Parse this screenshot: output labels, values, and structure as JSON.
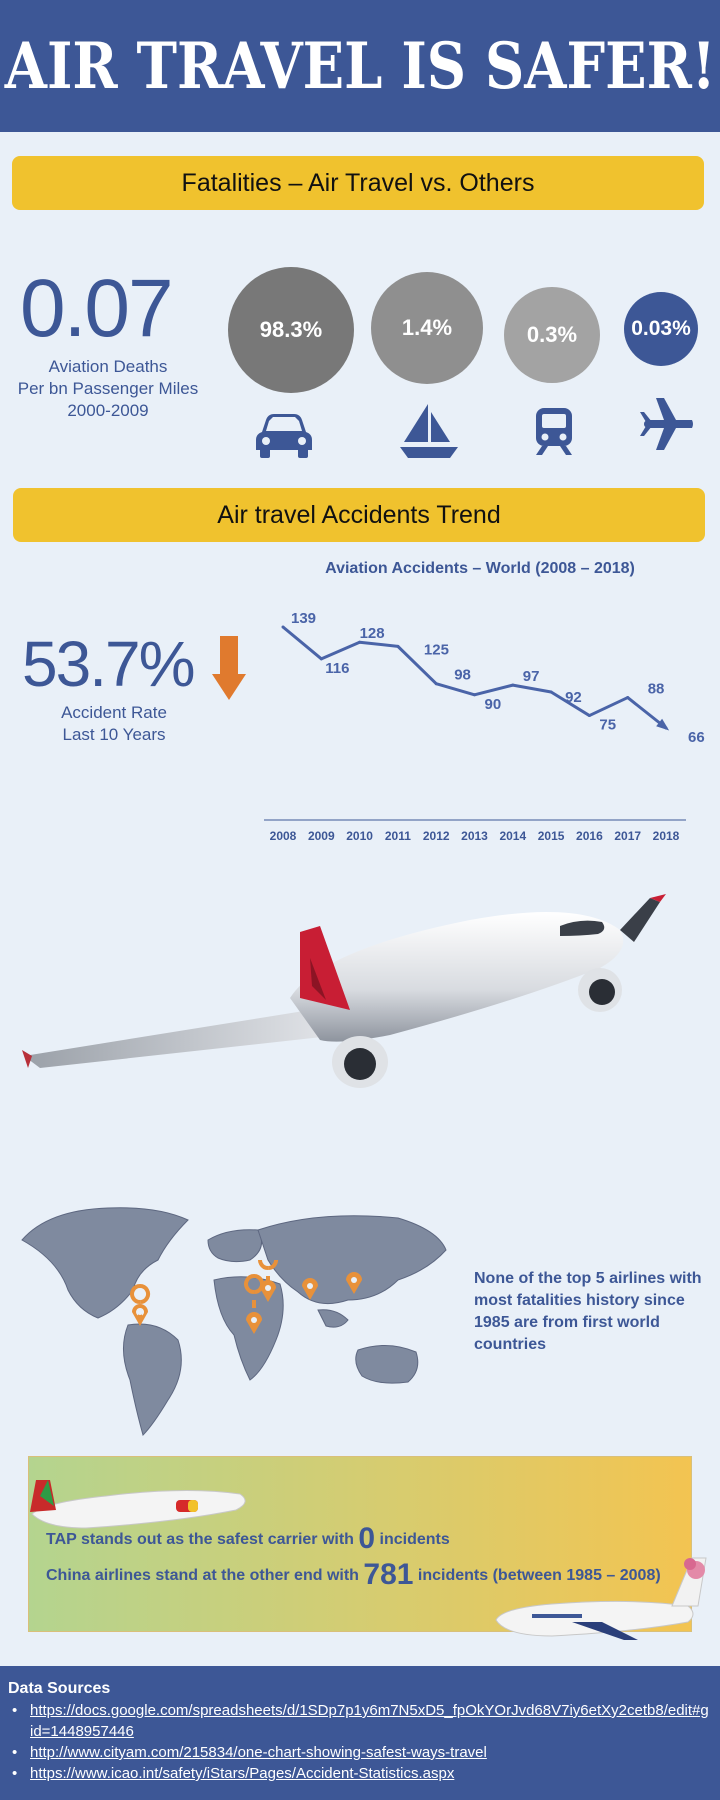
{
  "header": {
    "title": "AIR TRAVEL IS SAFER!"
  },
  "fatalities": {
    "band_title": "Fatalities – Air Travel vs. Others",
    "headline_value": "0.07",
    "headline_label_lines": [
      "Aviation Deaths",
      "Per bn Passenger Miles",
      "2000-2009"
    ],
    "modes": [
      {
        "label": "98.3%",
        "icon": "car-icon",
        "color": "#787878"
      },
      {
        "label": "1.4%",
        "icon": "sailboat-icon",
        "color": "#8f8f8f"
      },
      {
        "label": "0.3%",
        "icon": "train-icon",
        "color": "#a3a3a3"
      },
      {
        "label": "0.03%",
        "icon": "airplane-icon",
        "color": "#3d5796"
      }
    ]
  },
  "trend": {
    "band_title": "Air travel Accidents Trend",
    "headline_value": "53.7%",
    "headline_icon": "down-arrow-icon",
    "headline_label_lines": [
      "Accident Rate",
      "Last 10 Years"
    ]
  },
  "chart_data": {
    "type": "line",
    "title": "Aviation Accidents – World (2008 – 2018)",
    "categories": [
      "2008",
      "2009",
      "2010",
      "2011",
      "2012",
      "2013",
      "2014",
      "2015",
      "2016",
      "2017",
      "2018"
    ],
    "values": [
      139,
      116,
      128,
      125,
      98,
      90,
      97,
      92,
      75,
      88,
      66
    ],
    "data_labels": true,
    "color": "#4a64a8",
    "grid": false
  },
  "world": {
    "text": "None of the top 5 airlines with most fatalities history since 1985 are from first world countries",
    "marker_icon": "location-pin-icon",
    "marker_color": "#e8913a"
  },
  "airlines": {
    "tap_prefix": "TAP stands out as the safest carrier with",
    "tap_count": "0",
    "tap_suffix": "incidents",
    "china_prefix": "China airlines stand at the other end with",
    "china_count": "781",
    "china_suffix": "incidents (between 1985 – 2008)"
  },
  "footer": {
    "title": "Data Sources",
    "sources": [
      "https://docs.google.com/spreadsheets/d/1SDp7p1y6m7N5xD5_fpOkYOrJvd68V7iy6etXy2cetb8/edit#gid=1448957446",
      "http://www.cityam.com/215834/one-chart-showing-safest-ways-travel",
      "https://www.icao.int/safety/iStars/Pages/Accident-Statistics.aspx"
    ]
  }
}
